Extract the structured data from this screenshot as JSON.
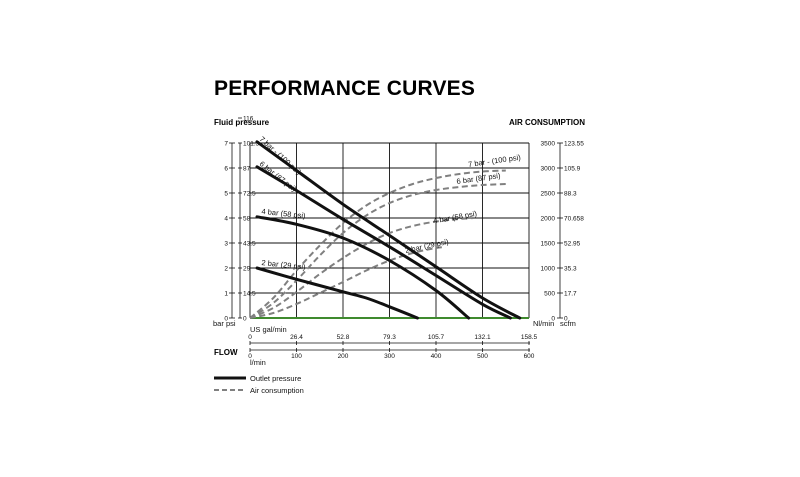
{
  "chart_data": {
    "type": "line",
    "title": "PERFORMANCE CURVES",
    "left_axis_title": "Fluid pressure",
    "right_axis_title": "AIR CONSUMPTION",
    "left_unit_bar": "bar",
    "left_unit_psi": "psi",
    "right_unit_nl": "Nl/min",
    "right_unit_scfm": "scfm",
    "x_unit_gal": "US gal/min",
    "x_unit_lmin": "l/min",
    "flow_label": "FLOW",
    "xlim": [
      0,
      600
    ],
    "ylim_bar": [
      0,
      7
    ],
    "ylim_air_nl": [
      0,
      3500
    ],
    "bar_ticks": [
      "0",
      "1",
      "2",
      "3",
      "4",
      "5",
      "6",
      "7"
    ],
    "psi_ticks": [
      "0",
      "14.5",
      "29",
      "43.5",
      "58",
      "72.5",
      "87",
      "101.5",
      "116"
    ],
    "nl_ticks": [
      "0",
      "500",
      "1000",
      "1500",
      "2000",
      "2500",
      "3000",
      "3500"
    ],
    "scfm_ticks": [
      "0",
      "17.7",
      "35.3",
      "52.95",
      "70.658",
      "88.3",
      "105.9",
      "123.55"
    ],
    "lmin_ticks": [
      "0",
      "100",
      "200",
      "300",
      "400",
      "500",
      "600"
    ],
    "gal_ticks": [
      "0",
      "26.4",
      "52.8",
      "79.3",
      "105.7",
      "132.1",
      "158.5"
    ],
    "outlet_series": [
      {
        "name": "7 bar - (100 psi)",
        "x": [
          15,
          100,
          200,
          300,
          400,
          500,
          580
        ],
        "y": [
          7.05,
          5.9,
          4.55,
          3.3,
          2.05,
          0.8,
          0.0
        ]
      },
      {
        "name": "6 bar (87 psi)",
        "x": [
          15,
          100,
          200,
          300,
          400,
          500,
          560
        ],
        "y": [
          6.05,
          5.1,
          3.95,
          2.85,
          1.7,
          0.55,
          0.0
        ]
      },
      {
        "name": "4 bar (58 psi)",
        "x": [
          15,
          100,
          200,
          300,
          400,
          470
        ],
        "y": [
          4.05,
          3.75,
          3.2,
          2.3,
          1.1,
          0.0
        ]
      },
      {
        "name": "2 bar (29 psi)",
        "x": [
          15,
          100,
          200,
          250,
          300,
          360
        ],
        "y": [
          2.0,
          1.55,
          1.05,
          0.8,
          0.45,
          0.0
        ]
      }
    ],
    "air_series": [
      {
        "name": "7 bar - (100 psi)",
        "x": [
          0,
          50,
          100,
          150,
          200,
          250,
          300,
          350,
          400,
          450,
          500,
          550
        ],
        "y": [
          0,
          400,
          950,
          1450,
          1900,
          2250,
          2500,
          2680,
          2800,
          2880,
          2930,
          2950
        ]
      },
      {
        "name": "6 bar (87 psi)",
        "x": [
          0,
          50,
          100,
          150,
          200,
          250,
          300,
          350,
          400,
          450,
          500,
          550
        ],
        "y": [
          0,
          300,
          750,
          1250,
          1700,
          2050,
          2300,
          2460,
          2560,
          2620,
          2660,
          2680
        ]
      },
      {
        "name": "4 bar (58 psi)",
        "x": [
          0,
          50,
          100,
          150,
          200,
          250,
          300,
          350,
          400,
          450,
          480
        ],
        "y": [
          0,
          200,
          520,
          880,
          1200,
          1480,
          1700,
          1840,
          1930,
          1980,
          2000
        ]
      },
      {
        "name": "2 bar (29 psi)",
        "x": [
          0,
          50,
          100,
          150,
          200,
          250,
          300,
          350,
          400,
          420
        ],
        "y": [
          0,
          100,
          280,
          500,
          720,
          950,
          1150,
          1300,
          1400,
          1420
        ]
      }
    ],
    "legend": {
      "outlet": "Outlet pressure",
      "air": "Air consumption"
    },
    "placement": "below-left",
    "grid": true,
    "colors": {
      "outlet": "#111111",
      "air": "#808080",
      "grid": "#111111",
      "baseline": "#3f8a2e"
    }
  }
}
